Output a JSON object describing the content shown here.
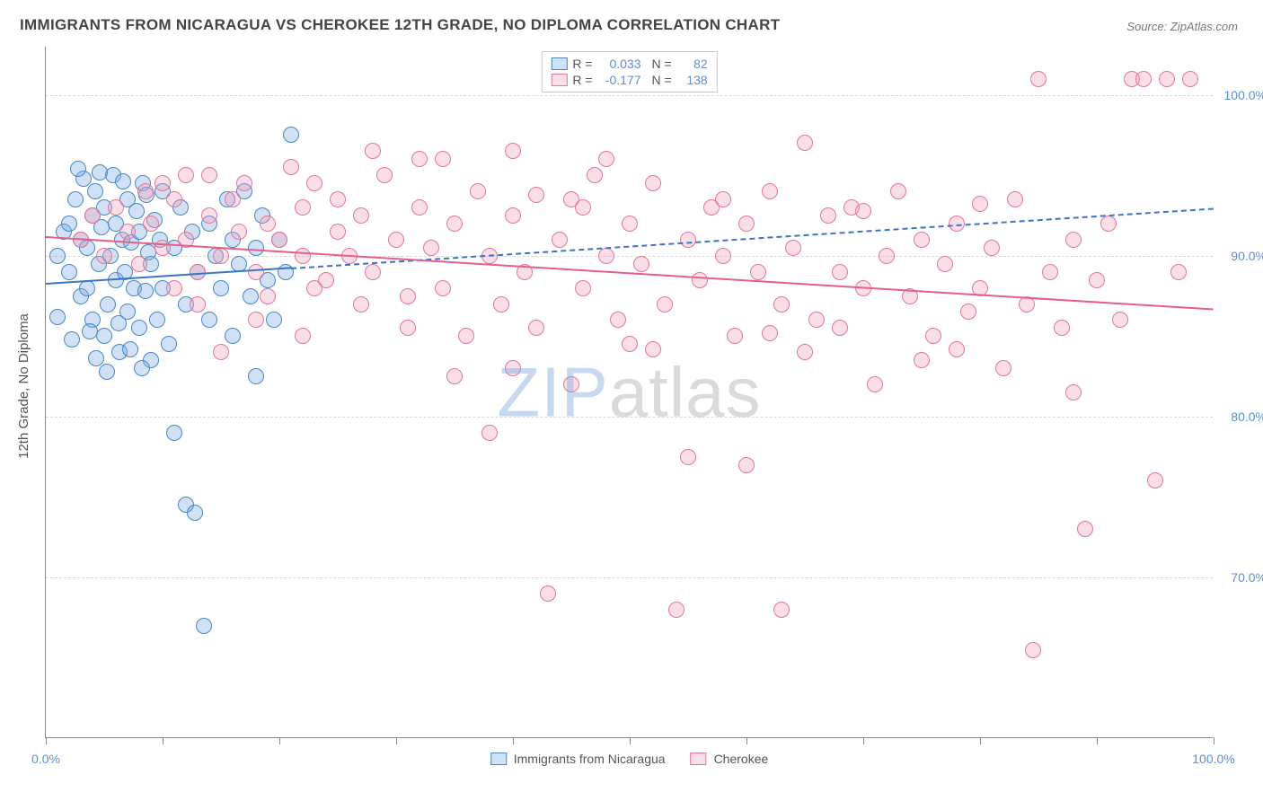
{
  "title": "IMMIGRANTS FROM NICARAGUA VS CHEROKEE 12TH GRADE, NO DIPLOMA CORRELATION CHART",
  "source_label": "Source:",
  "source_name": "ZipAtlas.com",
  "y_axis_title": "12th Grade, No Diploma",
  "watermark_a": "ZIP",
  "watermark_b": "atlas",
  "chart": {
    "type": "scatter",
    "xlim": [
      0,
      100
    ],
    "ylim": [
      60,
      103
    ],
    "x_ticks": [
      0,
      10,
      20,
      30,
      40,
      50,
      60,
      70,
      80,
      90,
      100
    ],
    "x_tick_labels": {
      "0": "0.0%",
      "100": "100.0%"
    },
    "y_gridlines": [
      70,
      80,
      90,
      100
    ],
    "y_tick_labels": {
      "70": "70.0%",
      "80": "80.0%",
      "90": "90.0%",
      "100": "100.0%"
    },
    "background_color": "#ffffff",
    "grid_color": "#d8d8d8",
    "axis_label_color": "#5b8fd6",
    "point_radius": 9,
    "point_stroke_width": 1.5,
    "series": [
      {
        "name": "Immigrants from Nicaragua",
        "fill": "rgba(120,170,225,0.35)",
        "stroke": "#4a86c7",
        "R": "0.033",
        "N": "82",
        "trend": {
          "x1": 0,
          "y1": 88.3,
          "x2": 100,
          "y2": 93.0,
          "solid_until_x": 21,
          "color": "#3a75c4",
          "width": 2
        },
        "points": [
          [
            1,
            90
          ],
          [
            1.5,
            91.5
          ],
          [
            2,
            89
          ],
          [
            2,
            92
          ],
          [
            2.5,
            93.5
          ],
          [
            3,
            91
          ],
          [
            3,
            87.5
          ],
          [
            3.2,
            94.8
          ],
          [
            3.5,
            90.5
          ],
          [
            3.5,
            88
          ],
          [
            4,
            92.5
          ],
          [
            4,
            86
          ],
          [
            4.2,
            94
          ],
          [
            4.5,
            89.5
          ],
          [
            4.8,
            91.8
          ],
          [
            5,
            85
          ],
          [
            5,
            93
          ],
          [
            5.3,
            87
          ],
          [
            5.5,
            90
          ],
          [
            5.8,
            95
          ],
          [
            6,
            88.5
          ],
          [
            6,
            92
          ],
          [
            6.3,
            84
          ],
          [
            6.5,
            91
          ],
          [
            6.8,
            89
          ],
          [
            7,
            93.5
          ],
          [
            7,
            86.5
          ],
          [
            7.3,
            90.8
          ],
          [
            7.5,
            88
          ],
          [
            7.8,
            92.8
          ],
          [
            8,
            85.5
          ],
          [
            8,
            91.5
          ],
          [
            8.3,
            94.5
          ],
          [
            8.5,
            87.8
          ],
          [
            8.8,
            90.2
          ],
          [
            9,
            83.5
          ],
          [
            9,
            89.5
          ],
          [
            9.3,
            92.2
          ],
          [
            9.5,
            86
          ],
          [
            9.8,
            91
          ],
          [
            10,
            88
          ],
          [
            10,
            94
          ],
          [
            10.5,
            84.5
          ],
          [
            11,
            90.5
          ],
          [
            11,
            79
          ],
          [
            11.5,
            93
          ],
          [
            12,
            87
          ],
          [
            12,
            74.5
          ],
          [
            12.5,
            91.5
          ],
          [
            12.8,
            74
          ],
          [
            13,
            89
          ],
          [
            13.5,
            67
          ],
          [
            14,
            92
          ],
          [
            14,
            86
          ],
          [
            14.5,
            90
          ],
          [
            15,
            88
          ],
          [
            15.5,
            93.5
          ],
          [
            16,
            85
          ],
          [
            16,
            91
          ],
          [
            16.5,
            89.5
          ],
          [
            17,
            94
          ],
          [
            17.5,
            87.5
          ],
          [
            18,
            82.5
          ],
          [
            18,
            90.5
          ],
          [
            18.5,
            92.5
          ],
          [
            19,
            88.5
          ],
          [
            19.5,
            86
          ],
          [
            20,
            91
          ],
          [
            20.5,
            89
          ],
          [
            21,
            97.5
          ],
          [
            1,
            86.2
          ],
          [
            2.2,
            84.8
          ],
          [
            3.8,
            85.3
          ],
          [
            4.3,
            83.6
          ],
          [
            5.2,
            82.8
          ],
          [
            6.2,
            85.8
          ],
          [
            7.2,
            84.2
          ],
          [
            8.2,
            83
          ],
          [
            2.8,
            95.4
          ],
          [
            4.6,
            95.2
          ],
          [
            6.6,
            94.6
          ],
          [
            8.6,
            93.8
          ]
        ]
      },
      {
        "name": "Cherokee",
        "fill": "rgba(240,160,185,0.35)",
        "stroke": "#e27798",
        "R": "-0.177",
        "N": "138",
        "trend": {
          "x1": 0,
          "y1": 91.2,
          "x2": 100,
          "y2": 86.7,
          "solid_until_x": 100,
          "color": "#e55f88",
          "width": 2
        },
        "points": [
          [
            3,
            91
          ],
          [
            4,
            92.5
          ],
          [
            5,
            90
          ],
          [
            6,
            93
          ],
          [
            7,
            91.5
          ],
          [
            8,
            89.5
          ],
          [
            8.5,
            94
          ],
          [
            9,
            92
          ],
          [
            10,
            90.5
          ],
          [
            11,
            93.5
          ],
          [
            12,
            91
          ],
          [
            13,
            89
          ],
          [
            14,
            95
          ],
          [
            14,
            92.5
          ],
          [
            15,
            90
          ],
          [
            16,
            93.5
          ],
          [
            16.5,
            91.5
          ],
          [
            17,
            94.5
          ],
          [
            18,
            89
          ],
          [
            19,
            92
          ],
          [
            20,
            91
          ],
          [
            21,
            95.5
          ],
          [
            22,
            90
          ],
          [
            22,
            93
          ],
          [
            23,
            94.5
          ],
          [
            24,
            88.5
          ],
          [
            25,
            91.5
          ],
          [
            25,
            93.5
          ],
          [
            26,
            90
          ],
          [
            27,
            92.5
          ],
          [
            28,
            89
          ],
          [
            29,
            95
          ],
          [
            30,
            91
          ],
          [
            31,
            87.5
          ],
          [
            32,
            93
          ],
          [
            33,
            90.5
          ],
          [
            34,
            88
          ],
          [
            34,
            96
          ],
          [
            35,
            92
          ],
          [
            36,
            85
          ],
          [
            37,
            94
          ],
          [
            38,
            79
          ],
          [
            38,
            90
          ],
          [
            39,
            87
          ],
          [
            40,
            92.5
          ],
          [
            41,
            89
          ],
          [
            42,
            85.5
          ],
          [
            43,
            69
          ],
          [
            44,
            91
          ],
          [
            45,
            93.5
          ],
          [
            46,
            88
          ],
          [
            47,
            95
          ],
          [
            48,
            90
          ],
          [
            49,
            86
          ],
          [
            50,
            92
          ],
          [
            50,
            84.5
          ],
          [
            51,
            89.5
          ],
          [
            52,
            94.5
          ],
          [
            53,
            87
          ],
          [
            54,
            68
          ],
          [
            55,
            91
          ],
          [
            56,
            88.5
          ],
          [
            57,
            93
          ],
          [
            58,
            90
          ],
          [
            59,
            85
          ],
          [
            60,
            77
          ],
          [
            60,
            92
          ],
          [
            61,
            89
          ],
          [
            62,
            94
          ],
          [
            63,
            68
          ],
          [
            63,
            87
          ],
          [
            64,
            90.5
          ],
          [
            65,
            97
          ],
          [
            66,
            86
          ],
          [
            67,
            92.5
          ],
          [
            68,
            89
          ],
          [
            68,
            85.5
          ],
          [
            69,
            93
          ],
          [
            70,
            88
          ],
          [
            71,
            82
          ],
          [
            72,
            90
          ],
          [
            73,
            94
          ],
          [
            74,
            87.5
          ],
          [
            75,
            91
          ],
          [
            76,
            85
          ],
          [
            77,
            89.5
          ],
          [
            78,
            92
          ],
          [
            79,
            86.5
          ],
          [
            80,
            88
          ],
          [
            81,
            90.5
          ],
          [
            82,
            83
          ],
          [
            83,
            93.5
          ],
          [
            84,
            87
          ],
          [
            84.5,
            65.5
          ],
          [
            85,
            101
          ],
          [
            86,
            89
          ],
          [
            87,
            85.5
          ],
          [
            88,
            91
          ],
          [
            89,
            73
          ],
          [
            90,
            88.5
          ],
          [
            91,
            92
          ],
          [
            92,
            86
          ],
          [
            93,
            101
          ],
          [
            94,
            101
          ],
          [
            95,
            76
          ],
          [
            96,
            101
          ],
          [
            97,
            89
          ],
          [
            98,
            101
          ],
          [
            35,
            82.5
          ],
          [
            40,
            83
          ],
          [
            45,
            82
          ],
          [
            18,
            86
          ],
          [
            22,
            85
          ],
          [
            28,
            96.5
          ],
          [
            32,
            96
          ],
          [
            40,
            96.5
          ],
          [
            48,
            96
          ],
          [
            55,
            77.5
          ],
          [
            65,
            84
          ],
          [
            75,
            83.5
          ],
          [
            15,
            84
          ],
          [
            11,
            88
          ],
          [
            13,
            87
          ],
          [
            19,
            87.5
          ],
          [
            23,
            88
          ],
          [
            27,
            87
          ],
          [
            31,
            85.5
          ],
          [
            88,
            81.5
          ],
          [
            10,
            94.5
          ],
          [
            12,
            95
          ],
          [
            42,
            93.8
          ],
          [
            52,
            84.2
          ],
          [
            58,
            93.5
          ],
          [
            62,
            85.2
          ],
          [
            70,
            92.8
          ],
          [
            78,
            84.2
          ],
          [
            80,
            93.2
          ],
          [
            46,
            93
          ]
        ]
      }
    ]
  },
  "legend_top": {
    "r_label": "R =",
    "n_label": "N ="
  }
}
